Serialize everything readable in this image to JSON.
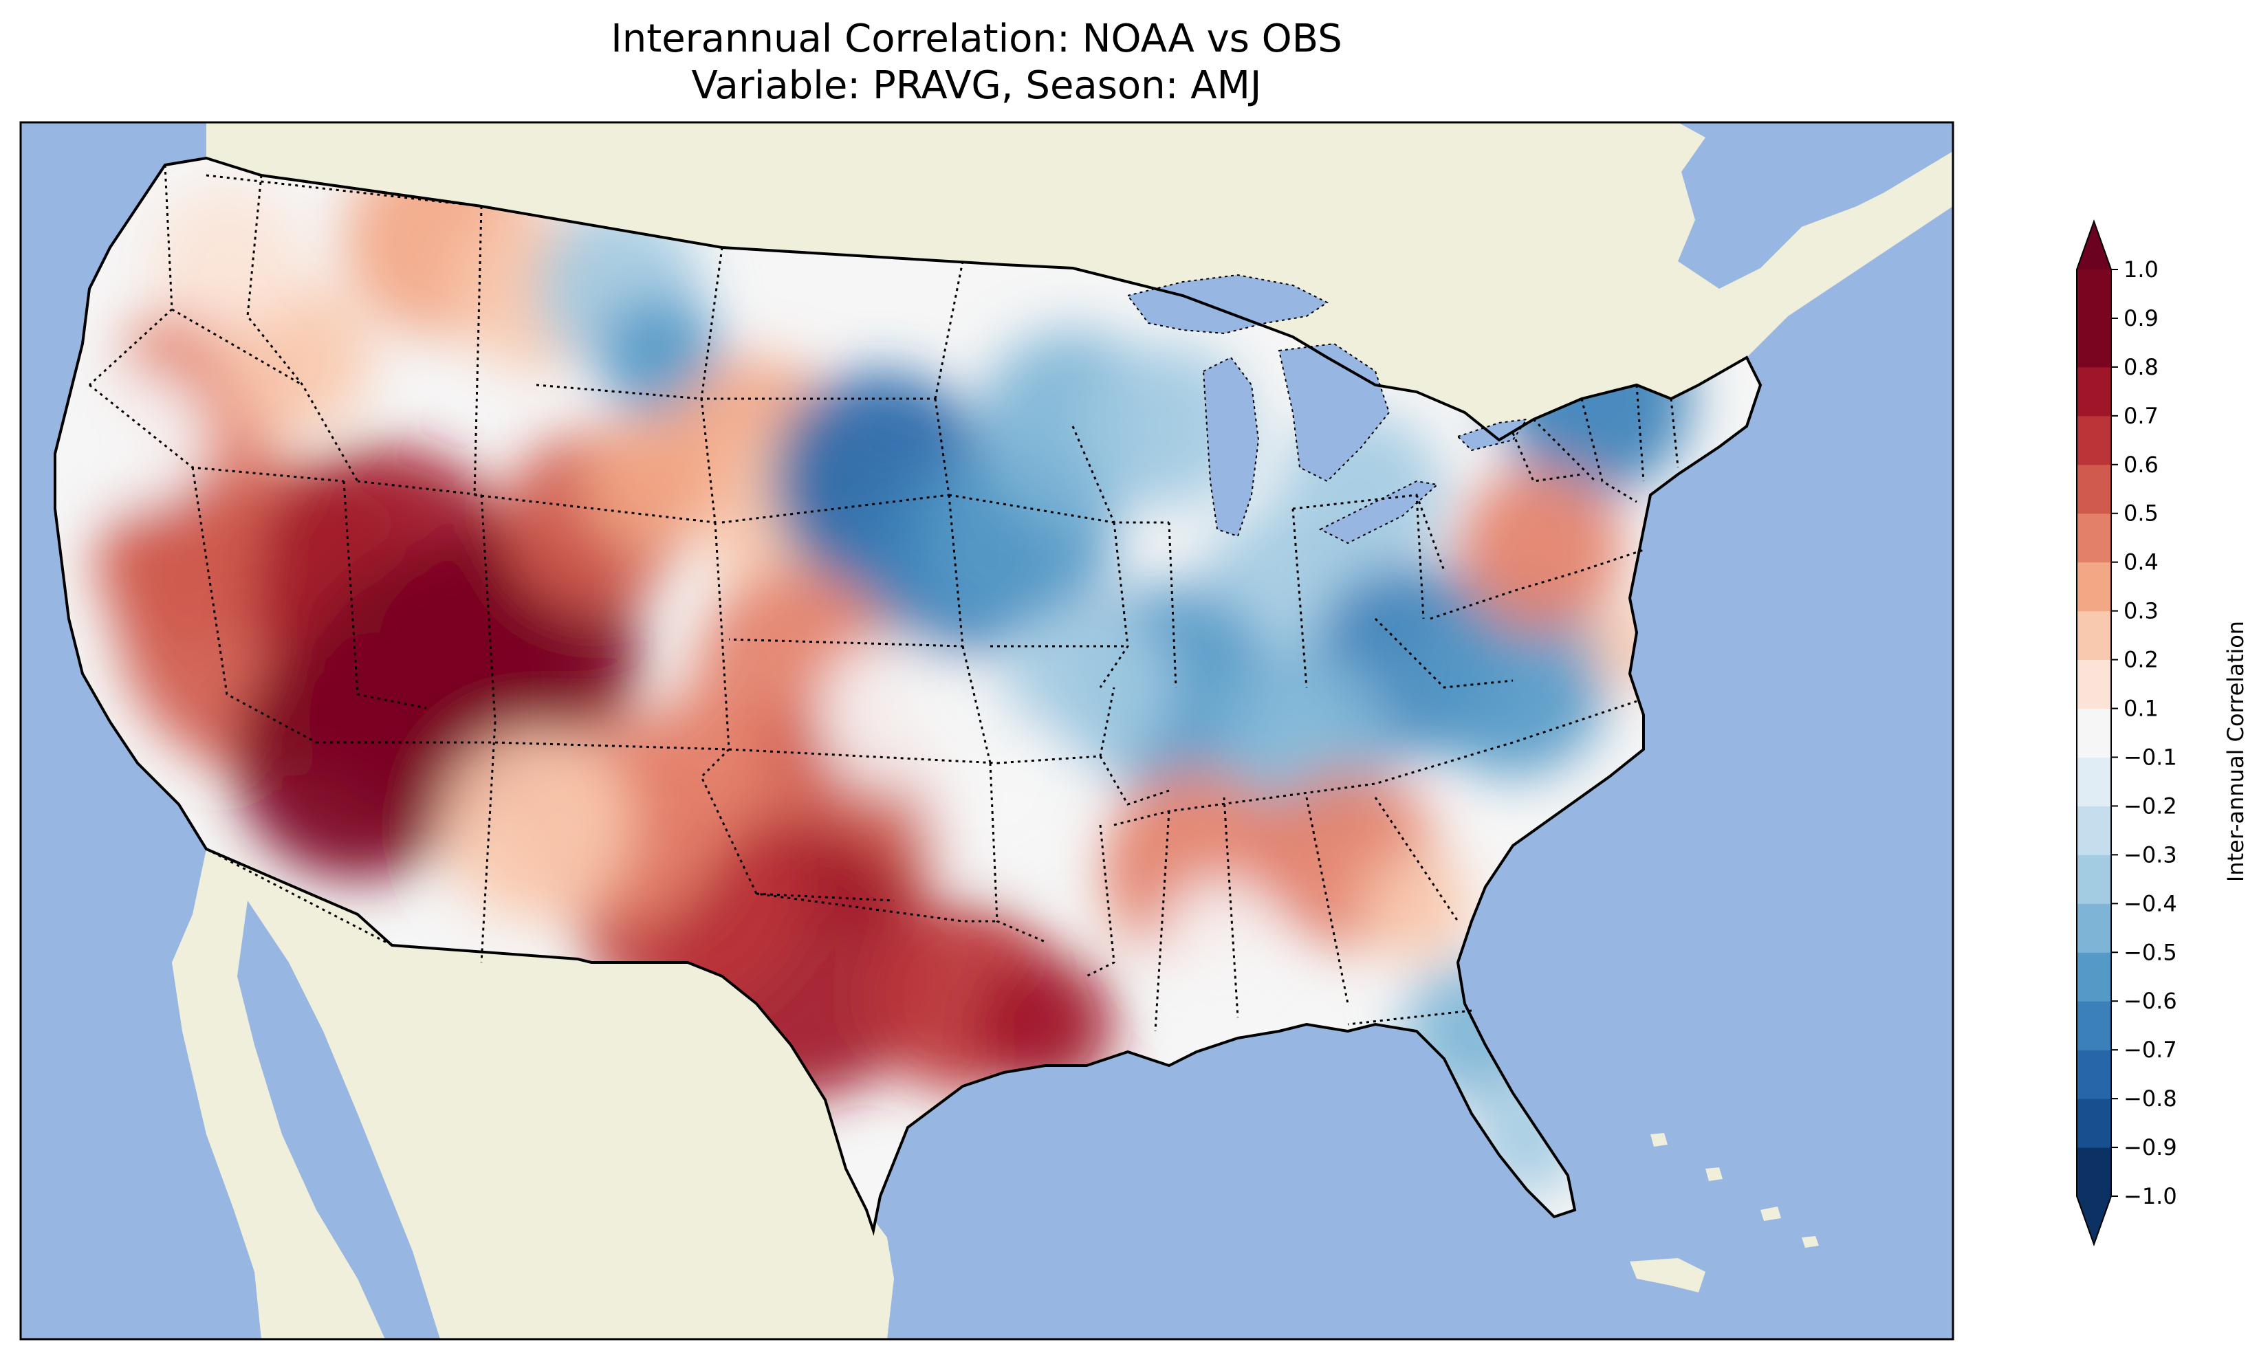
{
  "title_line1": "Interannual Correlation: NOAA vs OBS",
  "title_line2": "Variable: PRAVG, Season: AMJ",
  "colorbar": {
    "label": "Inter-annual Correlation",
    "ticks": [
      "−1.0",
      "−0.9",
      "−0.8",
      "−0.7",
      "−0.6",
      "−0.5",
      "−0.4",
      "−0.3",
      "−0.2",
      "−0.1",
      "0.1",
      "0.2",
      "0.3",
      "0.4",
      "0.5",
      "0.6",
      "0.7",
      "0.8",
      "0.9",
      "1.0"
    ],
    "colors": [
      "#0b3263",
      "#184f8e",
      "#2767a9",
      "#3b80b9",
      "#5599c7",
      "#7eb5d6",
      "#a3cbe2",
      "#c5dded",
      "#e1edf4",
      "#f6f6f6",
      "#fbe4d7",
      "#f8c9ae",
      "#f2a785",
      "#e3806a",
      "#cf5a4d",
      "#bb3438",
      "#a01629",
      "#7a0521"
    ],
    "under_color": "#0b3263",
    "over_color": "#6b0220"
  },
  "colors": {
    "ocean": "#97b6e1",
    "land": "#efefdb",
    "lakes": "#97b6e1"
  }
}
